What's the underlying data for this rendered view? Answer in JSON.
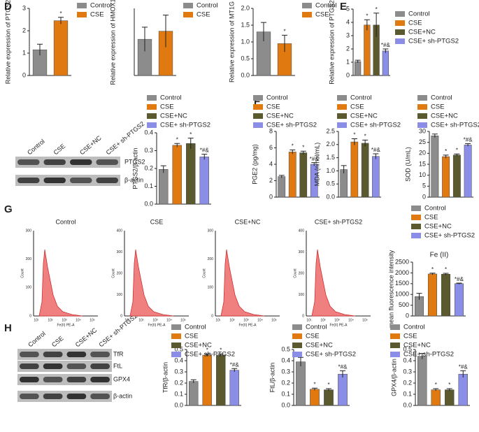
{
  "panels": [
    "D",
    "E",
    "F",
    "G",
    "H"
  ],
  "blots": [
    {
      "lanes": [
        "Control",
        "CSE",
        "CSE+NC",
        "CSE+ sh-PTGS2"
      ],
      "bands": [
        "PTGS2",
        "β-actin"
      ]
    },
    {
      "lanes": [
        "Control",
        "CSE",
        "CSE+NC",
        "CSE+ sh-PTGS2"
      ],
      "bands": [
        "TfR",
        "FtL",
        "GPX4",
        "β-actin"
      ]
    }
  ],
  "flow": [
    {
      "title": "Control",
      "xlabel": "Fe(II) PE-A",
      "ylabel": "Count",
      "yticks": [
        "0",
        "100",
        "200",
        "300"
      ],
      "xticks": [
        "10¹",
        "10²",
        "10³",
        "10⁴",
        "10⁵"
      ]
    },
    {
      "title": "CSE",
      "xlabel": "Fe(II) PE-A",
      "ylabel": "Count",
      "yticks": [
        "0",
        "100",
        "200",
        "300",
        "400"
      ],
      "xticks": [
        "10¹",
        "10²",
        "10³",
        "10⁴",
        "10⁵"
      ]
    },
    {
      "title": "CSE+NC",
      "xlabel": "Fe(II) PE-A",
      "ylabel": "Count",
      "yticks": [
        "0",
        "100",
        "200",
        "300"
      ],
      "xticks": [
        "10¹",
        "10²",
        "10³",
        "10⁴",
        "10⁵"
      ]
    },
    {
      "title": "CSE+ sh-PTGS2",
      "xlabel": "Fe(II) PE-A",
      "ylabel": "Count",
      "yticks": [
        "0",
        "100",
        "200",
        "300",
        "400"
      ],
      "xticks": [
        "10¹",
        "10²",
        "10³",
        "10⁴",
        "10⁵"
      ]
    }
  ],
  "chart_data": [
    {
      "type": "bar",
      "ylabel": "Relative expression of PTGS2",
      "ylim": [
        0,
        3
      ],
      "yticks": [
        0,
        1,
        2,
        3
      ],
      "series": [
        {
          "name": "Control",
          "color": "#8c8c8c",
          "values": [
            1.15
          ],
          "errors": [
            0.25
          ]
        },
        {
          "name": "CSE",
          "color": "#e07a10",
          "values": [
            2.45
          ],
          "errors": [
            0.15
          ],
          "annotation": "*"
        }
      ]
    },
    {
      "type": "bar",
      "ylabel": "Relative expression of HMOX1",
      "ylim": [
        0,
        2.5
      ],
      "series": [
        {
          "name": "Control",
          "color": "#8c8c8c",
          "values": [
            1.35
          ],
          "errors": [
            0.45
          ]
        },
        {
          "name": "CSE",
          "color": "#e07a10",
          "values": [
            1.65
          ],
          "errors": [
            0.6
          ]
        }
      ]
    },
    {
      "type": "bar",
      "ylabel": "Relative expression of MT1G",
      "ylim": [
        0,
        2
      ],
      "yticks": [
        {
          "value": 0,
          "label": "0.0"
        },
        {
          "value": 0.5,
          "label": "0.5"
        },
        {
          "value": 1,
          "label": "1.0"
        },
        {
          "value": 1.5,
          "label": "1.5"
        },
        {
          "value": 2,
          "label": "2.0"
        }
      ],
      "series": [
        {
          "name": "Control",
          "color": "#8c8c8c",
          "values": [
            1.3
          ],
          "errors": [
            0.28
          ]
        },
        {
          "name": "CSE",
          "color": "#e07a10",
          "values": [
            0.95
          ],
          "errors": [
            0.25
          ],
          "annotation": "*"
        }
      ]
    },
    {
      "type": "bar",
      "ylabel": "Relative expression of PTGS2",
      "ylim": [
        0,
        5
      ],
      "yticks": [
        0,
        1,
        2,
        3,
        4,
        5
      ],
      "series": [
        {
          "name": "Control",
          "color": "#8c8c8c",
          "values": [
            1.05
          ],
          "errors": [
            0.1
          ]
        },
        {
          "name": "CSE",
          "color": "#e07a10",
          "values": [
            3.8
          ],
          "errors": [
            0.4
          ],
          "annotation": "*"
        },
        {
          "name": "CSE+NC",
          "color": "#5a5a2e",
          "values": [
            3.8
          ],
          "errors": [
            0.9
          ],
          "annotation": "*"
        },
        {
          "name": "CSE+ sh-PTGS2",
          "color": "#8a8ee6",
          "values": [
            1.85
          ],
          "errors": [
            0.15
          ],
          "annotation": "*#&"
        }
      ]
    },
    {
      "type": "bar",
      "ylabel": "PTGS2/β-actin",
      "ylim": [
        0,
        0.4
      ],
      "yticks": [
        {
          "value": 0,
          "label": "0.0"
        },
        0.1,
        0.2,
        0.3,
        0.4
      ],
      "series": [
        {
          "name": "Control",
          "color": "#8c8c8c",
          "values": [
            0.195
          ],
          "errors": [
            0.02
          ]
        },
        {
          "name": "CSE",
          "color": "#e07a10",
          "values": [
            0.33
          ],
          "errors": [
            0.01
          ],
          "annotation": "*"
        },
        {
          "name": "CSE+NC",
          "color": "#5a5a2e",
          "values": [
            0.34
          ],
          "errors": [
            0.03
          ],
          "annotation": "*"
        },
        {
          "name": "CSE+ sh-PTGS2",
          "color": "#8a8ee6",
          "values": [
            0.265
          ],
          "errors": [
            0.015
          ],
          "annotation": "*#&"
        }
      ]
    },
    {
      "type": "bar",
      "ylabel": "PGE2 (pg/mg)",
      "ylim": [
        0,
        8
      ],
      "yticks": [
        0,
        2,
        4,
        6,
        8
      ],
      "series": [
        {
          "name": "Control",
          "color": "#8c8c8c",
          "values": [
            2.5
          ],
          "errors": [
            0.15
          ]
        },
        {
          "name": "CSE",
          "color": "#e07a10",
          "values": [
            5.5
          ],
          "errors": [
            0.25
          ],
          "annotation": "*"
        },
        {
          "name": "CSE+NC",
          "color": "#5a5a2e",
          "values": [
            5.4
          ],
          "errors": [
            0.2
          ],
          "annotation": "*"
        },
        {
          "name": "CSE+ sh-PTGS2",
          "color": "#8a8ee6",
          "values": [
            4.0
          ],
          "errors": [
            0.2
          ],
          "annotation": "*#&"
        }
      ]
    },
    {
      "type": "bar",
      "ylabel": "MDA (nmol/mL)",
      "ylim": [
        0,
        2.5
      ],
      "yticks": [
        {
          "value": 0,
          "label": "0.0"
        },
        0.5,
        {
          "value": 1,
          "label": "1.0"
        },
        1.5,
        {
          "value": 2,
          "label": "2.0"
        },
        2.5
      ],
      "series": [
        {
          "name": "Control",
          "color": "#8c8c8c",
          "values": [
            1.05
          ],
          "errors": [
            0.15
          ]
        },
        {
          "name": "CSE",
          "color": "#e07a10",
          "values": [
            2.1
          ],
          "errors": [
            0.12
          ],
          "annotation": "*"
        },
        {
          "name": "CSE+NC",
          "color": "#5a5a2e",
          "values": [
            2.05
          ],
          "errors": [
            0.12
          ],
          "annotation": "*"
        },
        {
          "name": "CSE+ sh-PTGS2",
          "color": "#8a8ee6",
          "values": [
            1.55
          ],
          "errors": [
            0.1
          ],
          "annotation": "*#&"
        }
      ]
    },
    {
      "type": "bar",
      "ylabel": "SOD (U/mL)",
      "ylim": [
        0,
        30
      ],
      "yticks": [
        0,
        5,
        10,
        15,
        20,
        25,
        30
      ],
      "series": [
        {
          "name": "Control",
          "color": "#8c8c8c",
          "values": [
            28
          ],
          "errors": [
            0.8
          ]
        },
        {
          "name": "CSE",
          "color": "#e07a10",
          "values": [
            18.5
          ],
          "errors": [
            0.7
          ],
          "annotation": "*"
        },
        {
          "name": "CSE+NC",
          "color": "#5a5a2e",
          "values": [
            19.2
          ],
          "errors": [
            0.5
          ],
          "annotation": "*"
        },
        {
          "name": "CSE+ sh-PTGS2",
          "color": "#8a8ee6",
          "values": [
            23.8
          ],
          "errors": [
            0.6
          ],
          "annotation": "*#&"
        }
      ]
    },
    {
      "type": "bar",
      "title": "Fe (II)",
      "ylabel": "mean fluorescence intensity",
      "ylim": [
        0,
        2500
      ],
      "yticks": [
        0,
        500,
        1000,
        1500,
        2000,
        2500
      ],
      "series": [
        {
          "name": "Control",
          "color": "#8c8c8c",
          "values": [
            900
          ],
          "errors": [
            150
          ]
        },
        {
          "name": "CSE",
          "color": "#e07a10",
          "values": [
            1950
          ],
          "errors": [
            40
          ],
          "annotation": "*"
        },
        {
          "name": "CSE+NC",
          "color": "#5a5a2e",
          "values": [
            1940
          ],
          "errors": [
            40
          ],
          "annotation": "*"
        },
        {
          "name": "CSE+ sh-PTGS2",
          "color": "#8a8ee6",
          "values": [
            1500
          ],
          "errors": [
            25
          ],
          "annotation": "*#&"
        }
      ]
    },
    {
      "type": "bar",
      "ylabel": "TfR/β-actin",
      "ylim": [
        0,
        0.5
      ],
      "yticks": [
        {
          "value": 0,
          "label": "0.0"
        },
        0.1,
        0.2,
        0.3,
        0.4,
        0.5
      ],
      "series": [
        {
          "name": "Control",
          "color": "#8c8c8c",
          "values": [
            0.215
          ],
          "errors": [
            0.015
          ]
        },
        {
          "name": "CSE",
          "color": "#e07a10",
          "values": [
            0.45
          ],
          "errors": [
            0.01
          ],
          "annotation": "*"
        },
        {
          "name": "CSE+NC",
          "color": "#5a5a2e",
          "values": [
            0.45
          ],
          "errors": [
            0.01
          ],
          "annotation": "*"
        },
        {
          "name": "CSE+ sh-PTGS2",
          "color": "#8a8ee6",
          "values": [
            0.315
          ],
          "errors": [
            0.015
          ],
          "annotation": "*#&"
        }
      ]
    },
    {
      "type": "bar",
      "ylabel": "FtL/β-actin",
      "ylim": [
        0,
        0.5
      ],
      "yticks": [
        {
          "value": 0,
          "label": "0.0"
        },
        0.1,
        0.2,
        0.3,
        0.4,
        0.5
      ],
      "series": [
        {
          "name": "Control",
          "color": "#8c8c8c",
          "values": [
            0.39
          ],
          "errors": [
            0.04
          ]
        },
        {
          "name": "CSE",
          "color": "#e07a10",
          "values": [
            0.145
          ],
          "errors": [
            0.01
          ],
          "annotation": "*"
        },
        {
          "name": "CSE+NC",
          "color": "#5a5a2e",
          "values": [
            0.14
          ],
          "errors": [
            0.01
          ],
          "annotation": "*"
        },
        {
          "name": "CSE+ sh-PTGS2",
          "color": "#8a8ee6",
          "values": [
            0.28
          ],
          "errors": [
            0.03
          ],
          "annotation": "*#&"
        }
      ]
    },
    {
      "type": "bar",
      "ylabel": "GPX4/β-actin",
      "ylim": [
        0,
        0.5
      ],
      "yticks": [
        {
          "value": 0,
          "label": "0.0"
        },
        0.1,
        0.2,
        0.3,
        0.4,
        0.5
      ],
      "series": [
        {
          "name": "Control",
          "color": "#8c8c8c",
          "values": [
            0.44
          ],
          "errors": [
            0.025
          ]
        },
        {
          "name": "CSE",
          "color": "#e07a10",
          "values": [
            0.14
          ],
          "errors": [
            0.01
          ],
          "annotation": "*"
        },
        {
          "name": "CSE+NC",
          "color": "#5a5a2e",
          "values": [
            0.14
          ],
          "errors": [
            0.01
          ],
          "annotation": "*"
        },
        {
          "name": "CSE+ sh-PTGS2",
          "color": "#8a8ee6",
          "values": [
            0.28
          ],
          "errors": [
            0.03
          ],
          "annotation": "*#&"
        }
      ]
    }
  ]
}
